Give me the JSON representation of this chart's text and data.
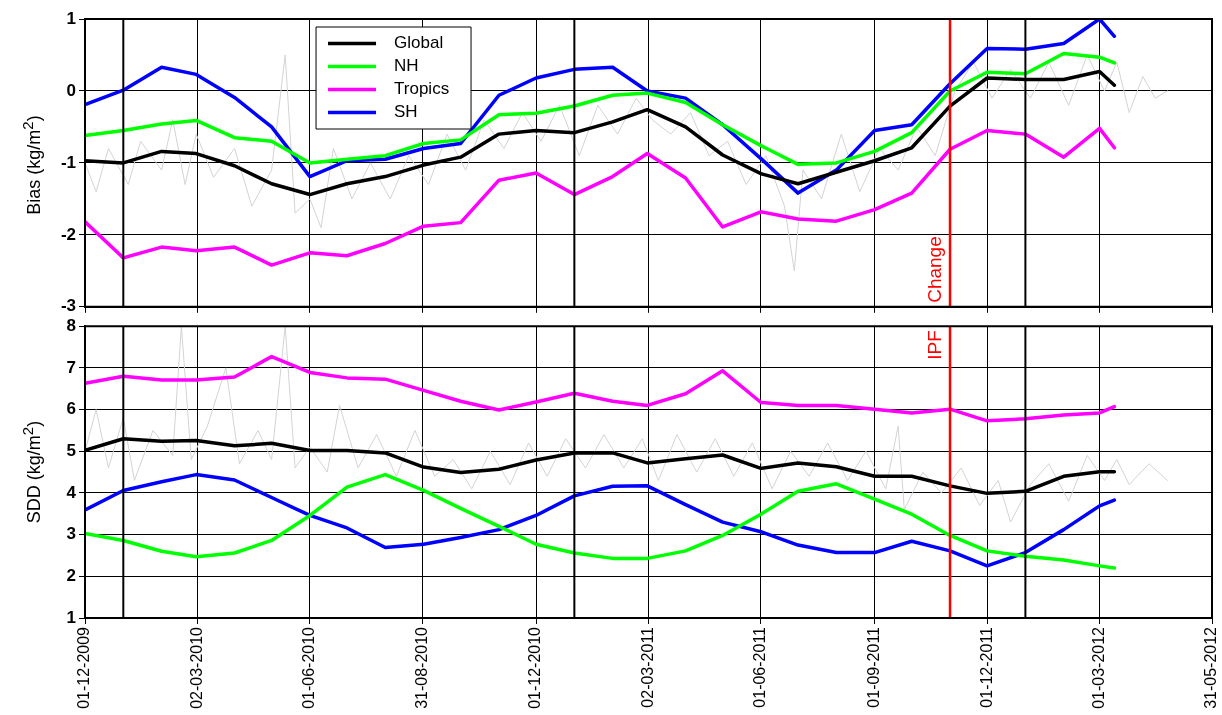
{
  "chart_data": [
    {
      "type": "line",
      "ylabel": "Bias (kg/m$^{2}$)",
      "xlim": [
        "2009-12-01",
        "2012-05-31"
      ],
      "xticks": [
        {
          "value": "2009-12-01",
          "label": null
        },
        {
          "value": "2010-03-02",
          "label": null
        },
        {
          "value": "2010-06-01",
          "label": null
        },
        {
          "value": "2010-08-31",
          "label": null
        },
        {
          "value": "2010-12-01",
          "label": null
        },
        {
          "value": "2011-03-02",
          "label": null
        },
        {
          "value": "2011-06-01",
          "label": null
        },
        {
          "value": "2011-09-01",
          "label": null
        },
        {
          "value": "2011-12-01",
          "label": null
        },
        {
          "value": "2012-03-01",
          "label": null
        },
        {
          "value": "2012-05-31",
          "label": null
        }
      ],
      "ylim": [
        -3,
        1
      ],
      "yticks": [
        -3,
        -2,
        -1,
        0,
        1
      ],
      "grid": true,
      "legend": "top left",
      "tick_labels": "y",
      "line_style": "solid",
      "x": [
        "2009-12-01",
        "2010-01-01",
        "2010-02-01",
        "2010-03-01",
        "2010-04-01",
        "2010-05-01",
        "2010-06-01",
        "2010-07-01",
        "2010-08-01",
        "2010-09-01",
        "2010-10-01",
        "2010-11-01",
        "2010-12-01",
        "2011-01-01",
        "2011-02-01",
        "2011-03-01",
        "2011-04-01",
        "2011-05-01",
        "2011-06-01",
        "2011-07-01",
        "2011-08-01",
        "2011-09-01",
        "2011-10-01",
        "2011-11-01",
        "2011-12-01",
        "2012-01-01",
        "2012-02-01",
        "2012-03-01",
        "2012-03-13"
      ],
      "series": [
        {
          "name": "Global",
          "color": "#000000",
          "values": [
            -0.97,
            -1.0,
            -0.84,
            -0.87,
            -1.04,
            -1.29,
            -1.44,
            -1.29,
            -1.19,
            -1.03,
            -0.92,
            -0.6,
            -0.55,
            -0.58,
            -0.43,
            -0.26,
            -0.5,
            -0.89,
            -1.15,
            -1.29,
            -1.13,
            -0.97,
            -0.79,
            -0.21,
            0.18,
            0.16,
            0.16,
            0.27,
            0.08
          ]
        },
        {
          "name": "NH",
          "color": "#00ff00",
          "values": [
            -0.62,
            -0.55,
            -0.46,
            -0.41,
            -0.65,
            -0.7,
            -1.0,
            -0.95,
            -0.9,
            -0.73,
            -0.68,
            -0.33,
            -0.31,
            -0.21,
            -0.06,
            -0.03,
            -0.16,
            -0.47,
            -0.76,
            -1.02,
            -1.0,
            -0.84,
            -0.58,
            0.0,
            0.26,
            0.24,
            0.52,
            0.47,
            0.39
          ]
        },
        {
          "name": "Tropics",
          "color": "#ff00ff",
          "values": [
            -1.82,
            -2.32,
            -2.17,
            -2.22,
            -2.17,
            -2.42,
            -2.25,
            -2.29,
            -2.12,
            -1.88,
            -1.83,
            -1.24,
            -1.14,
            -1.44,
            -1.19,
            -0.87,
            -1.21,
            -1.89,
            -1.68,
            -1.78,
            -1.81,
            -1.65,
            -1.42,
            -0.81,
            -0.55,
            -0.6,
            -0.92,
            -0.52,
            -0.79
          ]
        },
        {
          "name": "SH",
          "color": "#0000ff",
          "values": [
            -0.19,
            0.01,
            0.33,
            0.23,
            -0.09,
            -0.5,
            -1.19,
            -0.97,
            -0.95,
            -0.8,
            -0.73,
            -0.06,
            0.18,
            0.3,
            0.33,
            0.0,
            -0.1,
            -0.47,
            -0.94,
            -1.42,
            -1.1,
            -0.55,
            -0.47,
            0.1,
            0.59,
            0.58,
            0.66,
            1.0,
            0.76
          ]
        },
        {
          "color": "#d3d3d3",
          "x": [
            "2009-12-01",
            "2009-12-10",
            "2009-12-20",
            "2010-01-05",
            "2010-01-15",
            "2010-02-01",
            "2010-02-10",
            "2010-02-20",
            "2010-03-01",
            "2010-03-15",
            "2010-04-01",
            "2010-04-15",
            "2010-05-01",
            "2010-05-12",
            "2010-05-20",
            "2010-06-01",
            "2010-06-10",
            "2010-06-20",
            "2010-07-05",
            "2010-07-20",
            "2010-08-05",
            "2010-08-20",
            "2010-09-05",
            "2010-09-20",
            "2010-10-05",
            "2010-10-20",
            "2010-11-05",
            "2010-11-20",
            "2010-12-05",
            "2010-12-20",
            "2011-01-05",
            "2011-01-20",
            "2011-02-05",
            "2011-02-20",
            "2011-03-05",
            "2011-03-20",
            "2011-04-05",
            "2011-04-20",
            "2011-05-05",
            "2011-05-20",
            "2011-06-05",
            "2011-06-20",
            "2011-06-28",
            "2011-07-05",
            "2011-07-20",
            "2011-08-05",
            "2011-08-20",
            "2011-09-05",
            "2011-09-20",
            "2011-10-05",
            "2011-10-20",
            "2011-11-05",
            "2011-11-20",
            "2011-12-05",
            "2011-12-20",
            "2012-01-05",
            "2012-01-20",
            "2012-02-05",
            "2012-02-20",
            "2012-03-05",
            "2012-03-15",
            "2012-03-25",
            "2012-04-05",
            "2012-04-15",
            "2012-04-25"
          ],
          "values": [
            -1.0,
            -1.4,
            -0.8,
            -1.3,
            -0.7,
            -1.1,
            -0.4,
            -1.3,
            -0.6,
            -1.2,
            -0.8,
            -1.6,
            -1.1,
            0.5,
            -1.7,
            -1.5,
            -1.9,
            -0.8,
            -1.5,
            -1.0,
            -1.5,
            -0.9,
            -1.3,
            -0.6,
            -1.1,
            -0.4,
            -0.8,
            -0.3,
            -0.7,
            -0.2,
            -0.9,
            -0.2,
            -0.6,
            -0.1,
            -0.4,
            -0.6,
            -0.3,
            -0.9,
            -0.7,
            -1.3,
            -0.9,
            -1.6,
            -2.5,
            -1.1,
            -1.5,
            -0.6,
            -1.4,
            -0.8,
            -1.1,
            -0.5,
            -0.9,
            0.0,
            0.4,
            -0.1,
            0.3,
            -0.1,
            0.4,
            -0.2,
            0.5,
            0.0,
            0.4,
            -0.3,
            0.2,
            -0.1,
            0.0
          ]
        }
      ],
      "ref_lines": [
        {
          "axis": "x",
          "value": "2010-01-01",
          "color": "#000000"
        },
        {
          "axis": "x",
          "value": "2011-01-01",
          "color": "#000000"
        },
        {
          "axis": "x",
          "value": "2012-01-01",
          "color": "#000000"
        },
        {
          "axis": "x",
          "value": "2011-11-01",
          "label": "Change",
          "color": "#ff0000"
        }
      ]
    },
    {
      "type": "line",
      "ylabel": "SDD (kg/m$^{2}$)",
      "xlim": [
        "2009-12-01",
        "2012-05-31"
      ],
      "xticks": [
        {
          "value": "2009-12-01",
          "label": "01-12-2009"
        },
        {
          "value": "2010-03-02",
          "label": "02-03-2010"
        },
        {
          "value": "2010-06-01",
          "label": "01-06-2010"
        },
        {
          "value": "2010-08-31",
          "label": "31-08-2010"
        },
        {
          "value": "2010-12-01",
          "label": "01-12-2010"
        },
        {
          "value": "2011-03-02",
          "label": "02-03-2011"
        },
        {
          "value": "2011-06-01",
          "label": "01-06-2011"
        },
        {
          "value": "2011-09-01",
          "label": "01-09-2011"
        },
        {
          "value": "2011-12-01",
          "label": "01-12-2011"
        },
        {
          "value": "2012-03-01",
          "label": "01-03-2012"
        },
        {
          "value": "2012-05-31",
          "label": "31-05-2012"
        }
      ],
      "ylim": [
        1,
        8
      ],
      "yticks": [
        1,
        2,
        3,
        4,
        5,
        6,
        7,
        8
      ],
      "grid": true,
      "line_style": "solid",
      "x": [
        "2009-12-01",
        "2010-01-01",
        "2010-02-01",
        "2010-03-01",
        "2010-04-01",
        "2010-05-01",
        "2010-06-01",
        "2010-07-01",
        "2010-08-01",
        "2010-09-01",
        "2010-10-01",
        "2010-11-01",
        "2010-12-01",
        "2011-01-01",
        "2011-02-01",
        "2011-03-01",
        "2011-04-01",
        "2011-05-01",
        "2011-06-01",
        "2011-07-01",
        "2011-08-01",
        "2011-09-01",
        "2011-10-01",
        "2011-11-01",
        "2011-12-01",
        "2012-01-01",
        "2012-02-01",
        "2012-03-01",
        "2012-03-13"
      ],
      "series": [
        {
          "color": "#000000",
          "values": [
            5.02,
            5.3,
            5.24,
            5.26,
            5.13,
            5.19,
            5.02,
            5.02,
            4.96,
            4.62,
            4.49,
            4.57,
            4.79,
            4.96,
            4.96,
            4.72,
            4.82,
            4.91,
            4.59,
            4.72,
            4.63,
            4.4,
            4.4,
            4.17,
            3.99,
            4.04,
            4.4,
            4.51,
            4.51
          ]
        },
        {
          "color": "#00ff00",
          "values": [
            3.03,
            2.86,
            2.6,
            2.47,
            2.56,
            2.86,
            3.46,
            4.14,
            4.44,
            4.06,
            3.63,
            3.2,
            2.77,
            2.56,
            2.43,
            2.43,
            2.61,
            2.98,
            3.49,
            4.04,
            4.22,
            3.85,
            3.49,
            2.98,
            2.61,
            2.48,
            2.39,
            2.25,
            2.2
          ]
        },
        {
          "color": "#ff00ff",
          "values": [
            6.63,
            6.8,
            6.71,
            6.71,
            6.78,
            7.27,
            6.89,
            6.76,
            6.73,
            6.46,
            6.2,
            5.99,
            6.18,
            6.39,
            6.2,
            6.1,
            6.38,
            6.93,
            6.17,
            6.1,
            6.1,
            6.01,
            5.92,
            6.01,
            5.73,
            5.78,
            5.87,
            5.92,
            6.07
          ]
        },
        {
          "color": "#0000ff",
          "values": [
            3.59,
            4.06,
            4.27,
            4.44,
            4.31,
            3.89,
            3.46,
            3.16,
            2.69,
            2.77,
            2.93,
            3.12,
            3.46,
            3.93,
            4.16,
            4.17,
            3.72,
            3.3,
            3.07,
            2.75,
            2.57,
            2.57,
            2.84,
            2.61,
            2.25,
            2.57,
            3.12,
            3.69,
            3.83
          ]
        },
        {
          "color": "#d3d3d3",
          "x": [
            "2009-12-01",
            "2009-12-10",
            "2009-12-20",
            "2010-01-01",
            "2010-01-10",
            "2010-01-25",
            "2010-02-10",
            "2010-02-17",
            "2010-02-25",
            "2010-03-10",
            "2010-03-25",
            "2010-04-05",
            "2010-04-20",
            "2010-05-01",
            "2010-05-12",
            "2010-05-20",
            "2010-06-01",
            "2010-06-15",
            "2010-06-25",
            "2010-07-10",
            "2010-07-25",
            "2010-08-10",
            "2010-08-25",
            "2010-09-10",
            "2010-09-25",
            "2010-10-10",
            "2010-10-25",
            "2010-11-10",
            "2010-11-25",
            "2010-12-10",
            "2010-12-25",
            "2011-01-10",
            "2011-01-25",
            "2011-02-10",
            "2011-02-25",
            "2011-03-10",
            "2011-03-25",
            "2011-04-10",
            "2011-04-25",
            "2011-05-10",
            "2011-05-25",
            "2011-06-10",
            "2011-06-25",
            "2011-07-10",
            "2011-07-25",
            "2011-08-10",
            "2011-08-25",
            "2011-09-10",
            "2011-09-20",
            "2011-09-25",
            "2011-10-10",
            "2011-10-25",
            "2011-11-10",
            "2011-11-25",
            "2011-12-10",
            "2011-12-20",
            "2012-01-05",
            "2012-01-20",
            "2012-02-05",
            "2012-02-20",
            "2012-03-05",
            "2012-03-15",
            "2012-03-25",
            "2012-04-10",
            "2012-04-25"
          ],
          "values": [
            5.0,
            6.0,
            4.6,
            5.8,
            4.3,
            5.5,
            4.9,
            8.0,
            4.8,
            5.6,
            7.0,
            4.7,
            5.5,
            4.8,
            8.0,
            4.6,
            5.1,
            4.5,
            6.1,
            4.6,
            5.4,
            4.4,
            5.5,
            4.4,
            4.8,
            4.1,
            5.0,
            4.2,
            5.2,
            4.4,
            5.3,
            4.6,
            5.4,
            4.6,
            5.3,
            4.3,
            5.4,
            4.5,
            5.3,
            4.4,
            5.2,
            4.1,
            5.0,
            4.4,
            5.2,
            4.3,
            5.0,
            4.1,
            5.6,
            3.6,
            4.5,
            4.0,
            4.6,
            3.7,
            4.3,
            3.3,
            4.2,
            4.7,
            3.8,
            4.9,
            4.3,
            4.8,
            4.2,
            4.7,
            4.3
          ]
        }
      ],
      "ref_lines": [
        {
          "axis": "x",
          "value": "2010-01-01",
          "color": "#000000"
        },
        {
          "axis": "x",
          "value": "2011-01-01",
          "color": "#000000"
        },
        {
          "axis": "x",
          "value": "2012-01-01",
          "color": "#000000"
        },
        {
          "axis": "x",
          "value": "2011-11-01",
          "label": "IPF",
          "color": "#ff0000"
        }
      ]
    }
  ]
}
